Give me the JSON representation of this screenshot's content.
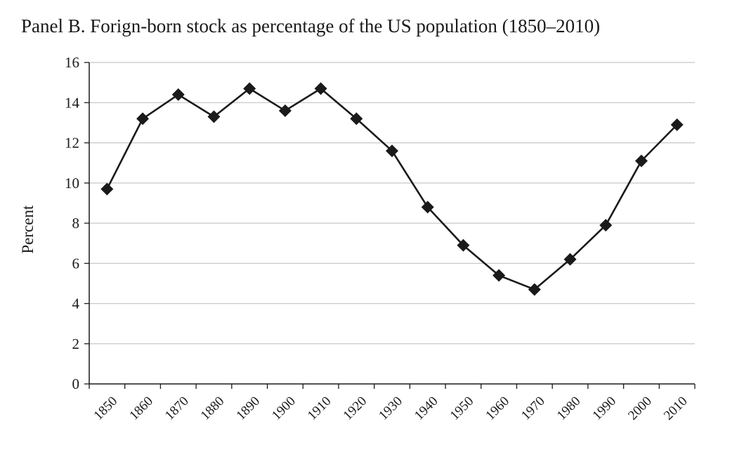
{
  "chart_data": {
    "type": "line",
    "title": "Panel B. Forign-born stock as percentage of the US population (1850–2010)",
    "xlabel": "",
    "ylabel": "Percent",
    "ylim": [
      0,
      16
    ],
    "yticks": [
      "0",
      "2",
      "4",
      "6",
      "8",
      "10",
      "12",
      "14",
      "16"
    ],
    "categories": [
      "1850",
      "1860",
      "1870",
      "1880",
      "1890",
      "1900",
      "1910",
      "1920",
      "1930",
      "1940",
      "1950",
      "1960",
      "1970",
      "1980",
      "1990",
      "2000",
      "2010"
    ],
    "series": [
      {
        "values": [
          9.7,
          13.2,
          14.4,
          13.3,
          14.7,
          13.6,
          14.7,
          13.2,
          11.6,
          8.8,
          6.9,
          5.4,
          4.7,
          6.2,
          7.9,
          11.1,
          12.9
        ]
      }
    ],
    "grid": true,
    "marker": "diamond",
    "colors": {
      "line": "#1a1a1a",
      "grid": "#c8c8c8",
      "axis": "#1a1a1a"
    }
  }
}
